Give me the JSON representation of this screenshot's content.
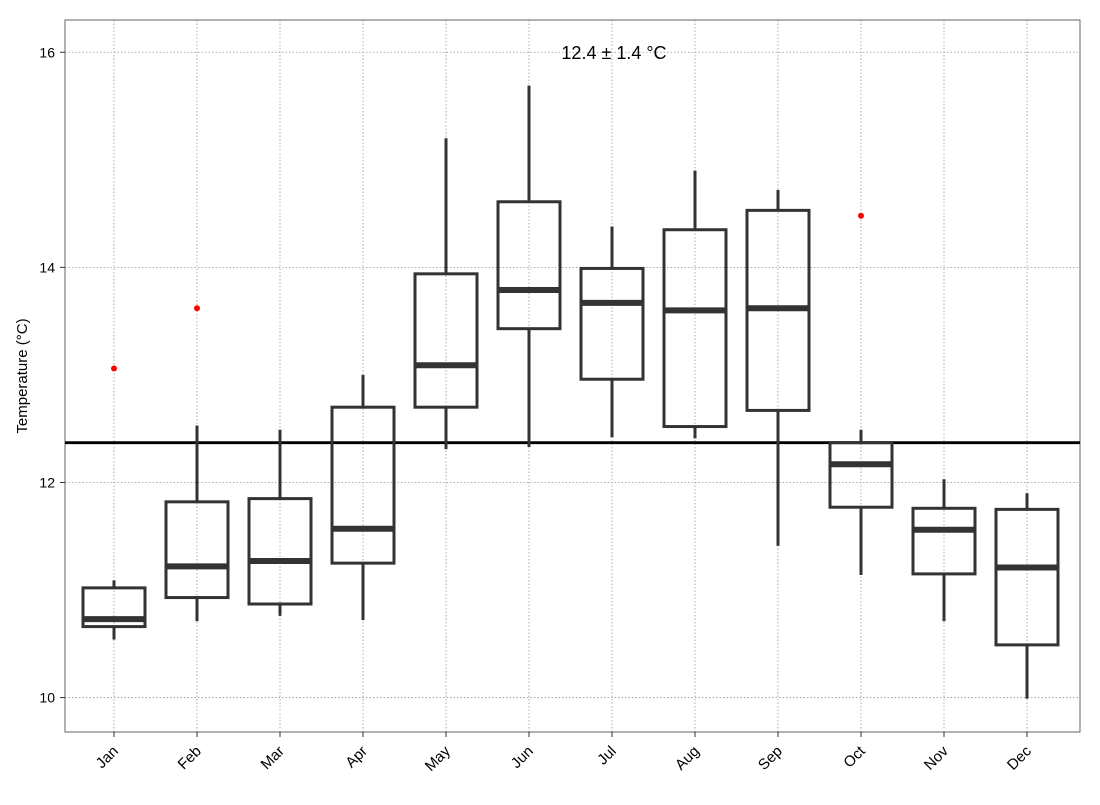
{
  "chart_data": {
    "type": "boxplot",
    "annotation": "12.4 ± 1.4 °C",
    "ylabel": "Temperature (°C)",
    "xlabel": "",
    "ylim": [
      9.68,
      16.3
    ],
    "yticks": [
      10,
      12,
      14,
      16
    ],
    "grid": true,
    "reference_line": 12.37,
    "colors": {
      "box": "#333333",
      "median": "#333333",
      "outlier": "#ff0000",
      "reference": "#000000",
      "grid": "#999999"
    },
    "categories": [
      "Jan",
      "Feb",
      "Mar",
      "Apr",
      "May",
      "Jun",
      "Jul",
      "Aug",
      "Sep",
      "Oct",
      "Nov",
      "Dec"
    ],
    "boxes": [
      {
        "low": 10.54,
        "q1": 10.66,
        "median": 10.73,
        "q3": 11.02,
        "high": 11.09,
        "outliers": [
          13.06
        ]
      },
      {
        "low": 10.71,
        "q1": 10.93,
        "median": 11.22,
        "q3": 11.82,
        "high": 12.53,
        "outliers": [
          13.62
        ]
      },
      {
        "low": 10.76,
        "q1": 10.87,
        "median": 11.27,
        "q3": 11.85,
        "high": 12.49,
        "outliers": []
      },
      {
        "low": 10.72,
        "q1": 11.25,
        "median": 11.57,
        "q3": 12.7,
        "high": 13.0,
        "outliers": []
      },
      {
        "low": 12.31,
        "q1": 12.7,
        "median": 13.09,
        "q3": 13.94,
        "high": 15.2,
        "outliers": []
      },
      {
        "low": 12.33,
        "q1": 13.43,
        "median": 13.79,
        "q3": 14.61,
        "high": 15.69,
        "outliers": []
      },
      {
        "low": 12.42,
        "q1": 12.96,
        "median": 13.67,
        "q3": 13.99,
        "high": 14.38,
        "outliers": []
      },
      {
        "low": 12.41,
        "q1": 12.52,
        "median": 13.6,
        "q3": 14.35,
        "high": 14.9,
        "outliers": []
      },
      {
        "low": 11.41,
        "q1": 12.67,
        "median": 13.62,
        "q3": 14.53,
        "high": 14.72,
        "outliers": []
      },
      {
        "low": 11.14,
        "q1": 11.77,
        "median": 12.17,
        "q3": 12.37,
        "high": 12.49,
        "outliers": [
          14.48
        ]
      },
      {
        "low": 10.71,
        "q1": 11.15,
        "median": 11.56,
        "q3": 11.76,
        "high": 12.03,
        "outliers": []
      },
      {
        "low": 9.99,
        "q1": 10.49,
        "median": 11.21,
        "q3": 11.75,
        "high": 11.9,
        "outliers": []
      }
    ]
  }
}
